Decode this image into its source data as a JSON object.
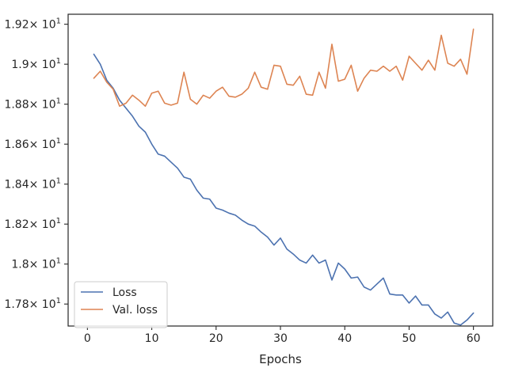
{
  "chart_data": {
    "type": "line",
    "xlabel": "Epochs",
    "ylabel": "",
    "xlim": [
      -3,
      63
    ],
    "ylim": [
      17.69,
      19.25
    ],
    "x_ticks": [
      0,
      10,
      20,
      30,
      40,
      50,
      60
    ],
    "y_ticks": [
      {
        "value": 17.8,
        "mantissa": "1.78",
        "exponent": "1"
      },
      {
        "value": 18.0,
        "mantissa": "1.8",
        "exponent": "1"
      },
      {
        "value": 18.2,
        "mantissa": "1.82",
        "exponent": "1"
      },
      {
        "value": 18.4,
        "mantissa": "1.84",
        "exponent": "1"
      },
      {
        "value": 18.6,
        "mantissa": "1.86",
        "exponent": "1"
      },
      {
        "value": 18.8,
        "mantissa": "1.88",
        "exponent": "1"
      },
      {
        "value": 19.0,
        "mantissa": "1.9",
        "exponent": "1"
      },
      {
        "value": 19.2,
        "mantissa": "1.92",
        "exponent": "1"
      }
    ],
    "tick_multiplier": "× 10",
    "grid": false,
    "legend_position": "lower-left",
    "x": [
      1,
      2,
      3,
      4,
      5,
      6,
      7,
      8,
      9,
      10,
      11,
      12,
      13,
      14,
      15,
      16,
      17,
      18,
      19,
      20,
      21,
      22,
      23,
      24,
      25,
      26,
      27,
      28,
      29,
      30,
      31,
      32,
      33,
      34,
      35,
      36,
      37,
      38,
      39,
      40,
      41,
      42,
      43,
      44,
      45,
      46,
      47,
      48,
      49,
      50,
      51,
      52,
      53,
      54,
      55,
      56,
      57,
      58,
      59,
      60
    ],
    "series": [
      {
        "name": "Loss",
        "color": "#4c72b0",
        "values": [
          19.05,
          19.0,
          18.92,
          18.88,
          18.82,
          18.78,
          18.74,
          18.69,
          18.66,
          18.6,
          18.55,
          18.54,
          18.51,
          18.48,
          18.435,
          18.425,
          18.37,
          18.33,
          18.325,
          18.28,
          18.27,
          18.255,
          18.245,
          18.22,
          18.2,
          18.19,
          18.16,
          18.135,
          18.095,
          18.13,
          18.075,
          18.05,
          18.02,
          18.005,
          18.045,
          18.005,
          18.02,
          17.92,
          18.005,
          17.975,
          17.93,
          17.935,
          17.885,
          17.87,
          17.9,
          17.93,
          17.85,
          17.845,
          17.845,
          17.805,
          17.84,
          17.795,
          17.795,
          17.75,
          17.73,
          17.76,
          17.705,
          17.695,
          17.72,
          17.755
        ]
      },
      {
        "name": "Val. loss",
        "color": "#dd8452",
        "values": [
          18.93,
          18.965,
          18.91,
          18.875,
          18.79,
          18.805,
          18.845,
          18.82,
          18.79,
          18.855,
          18.865,
          18.805,
          18.795,
          18.805,
          18.96,
          18.825,
          18.8,
          18.845,
          18.83,
          18.865,
          18.885,
          18.84,
          18.835,
          18.85,
          18.88,
          18.96,
          18.885,
          18.875,
          18.995,
          18.99,
          18.9,
          18.895,
          18.94,
          18.85,
          18.845,
          18.96,
          18.88,
          19.1,
          18.915,
          18.925,
          18.995,
          18.865,
          18.93,
          18.97,
          18.965,
          18.99,
          18.965,
          18.99,
          18.92,
          19.04,
          19.005,
          18.97,
          19.02,
          18.97,
          19.145,
          19.005,
          18.99,
          19.025,
          18.95,
          19.175
        ]
      }
    ]
  }
}
